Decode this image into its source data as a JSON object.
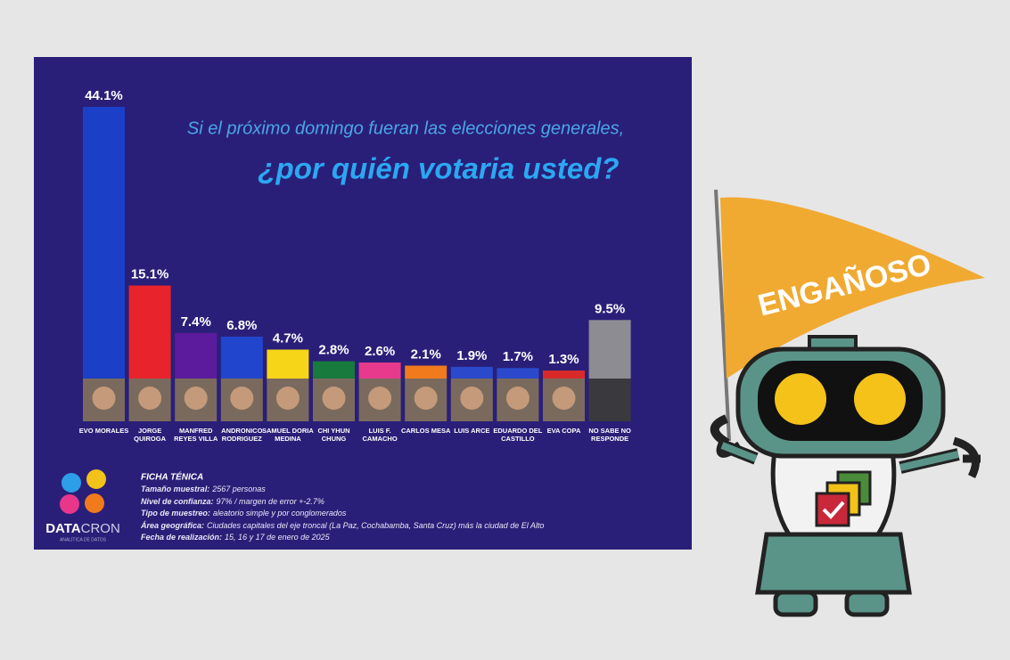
{
  "chart_data": {
    "type": "bar",
    "title": "Si el próximo domingo fueran las elecciones generales,",
    "subtitle": "¿por quién votaria usted?",
    "categories": [
      "EVO MORALES",
      "JORGE QUIROGA",
      "MANFRED REYES VILLA",
      "ANDRONICO RODRIGUEZ",
      "SAMUEL DORIA MEDINA",
      "CHI YHUN CHUNG",
      "LUIS F. CAMACHO",
      "CARLOS MESA",
      "LUIS ARCE",
      "EDUARDO DEL CASTILLO",
      "EVA COPA",
      "NO SABE NO RESPONDE"
    ],
    "values": [
      44.1,
      15.1,
      7.4,
      6.8,
      4.7,
      2.8,
      2.6,
      2.1,
      1.9,
      1.7,
      1.3,
      9.5
    ],
    "value_labels": [
      "44.1%",
      "15.1%",
      "7.4%",
      "6.8%",
      "4.7%",
      "2.8%",
      "2.6%",
      "2.1%",
      "1.9%",
      "1.7%",
      "1.3%",
      "9.5%"
    ],
    "colors": [
      "#1c3fc8",
      "#e8232c",
      "#5b1b9c",
      "#2145cc",
      "#f6d418",
      "#187a3c",
      "#e83a8c",
      "#f07a1c",
      "#2a4acb",
      "#2a4acb",
      "#d82a2a",
      "#8c8c92"
    ]
  },
  "ficha": {
    "title": "FICHA TÉNICA",
    "items": [
      {
        "label": "Tamaño muestral:",
        "value": "2567 personas"
      },
      {
        "label": "Nivel de confianza:",
        "value": "97% / margen de error +-2.7%"
      },
      {
        "label": "Tipo de muestreo:",
        "value": "aleatorio simple y por conglomerados"
      },
      {
        "label": "Área geográfica:",
        "value": "Ciudades capitales del eje troncal (La Paz, Cochabamba, Santa Cruz) más la ciudad de El Alto"
      },
      {
        "label": "Fecha de realización:",
        "value": "15, 16 y 17 de enero de 2025"
      }
    ]
  },
  "logo": {
    "name_a": "DATA",
    "name_b": "CRON",
    "tagline": "ANALÍTICA DE DATOS"
  },
  "badge": "ENGAÑOSO"
}
